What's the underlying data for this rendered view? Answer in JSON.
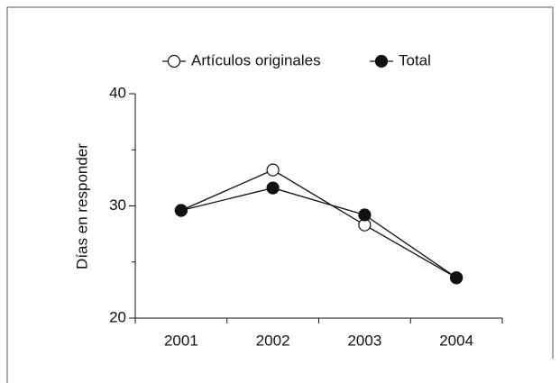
{
  "chart_data": {
    "type": "line",
    "categories": [
      "2001",
      "2002",
      "2003",
      "2004"
    ],
    "series": [
      {
        "name": "Artículos originales",
        "color": "#111111",
        "marker": "open",
        "values": [
          29.6,
          33.2,
          28.3,
          23.6
        ]
      },
      {
        "name": "Total",
        "color": "#111111",
        "marker": "filled",
        "values": [
          29.6,
          31.6,
          29.2,
          23.6
        ]
      }
    ],
    "ylabel": "Días en responder",
    "ylim": [
      20,
      40
    ],
    "yticks": [
      20,
      30,
      40
    ],
    "yminorticks": [
      25,
      35
    ],
    "legend": "top"
  }
}
